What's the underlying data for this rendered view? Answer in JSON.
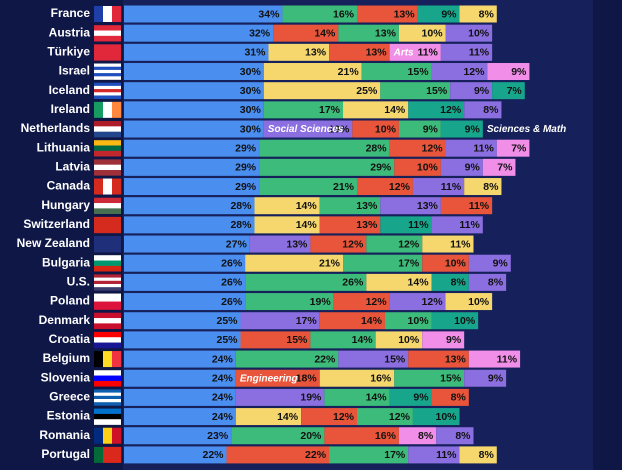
{
  "chart_data": {
    "type": "bar",
    "orientation": "horizontal",
    "stacked": true,
    "categories": [
      "France",
      "Austria",
      "Türkiye",
      "Israel",
      "Iceland",
      "Ireland",
      "Netherlands",
      "Lithuania",
      "Latvia",
      "Canada",
      "Hungary",
      "Switzerland",
      "New Zealand",
      "Bulgaria",
      "U.S.",
      "Poland",
      "Denmark",
      "Croatia",
      "Belgium",
      "Slovenia",
      "Greece",
      "Estonia",
      "Romania",
      "Portugal"
    ],
    "xlim": [
      0,
      100
    ],
    "rows": [
      [
        {
          "value": 34,
          "value_label": "34%",
          "color": "#4a8ef0"
        },
        {
          "value": 16,
          "value_label": "16%",
          "color": "#3dbb7a"
        },
        {
          "value": 13,
          "value_label": "13%",
          "color": "#e8553a"
        },
        {
          "value": 9,
          "value_label": "9%",
          "color": "#17a68c"
        },
        {
          "value": 8,
          "value_label": "8%",
          "color": "#f5d76e"
        }
      ],
      [
        {
          "value": 32,
          "value_label": "32%",
          "color": "#4a8ef0"
        },
        {
          "value": 14,
          "value_label": "14%",
          "color": "#e8553a"
        },
        {
          "value": 13,
          "value_label": "13%",
          "color": "#3dbb7a"
        },
        {
          "value": 10,
          "value_label": "10%",
          "color": "#f5d76e"
        },
        {
          "value": 10,
          "value_label": "10%",
          "color": "#8b6fe0"
        }
      ],
      [
        {
          "value": 31,
          "value_label": "31%",
          "color": "#4a8ef0"
        },
        {
          "value": 13,
          "value_label": "13%",
          "color": "#f5d76e"
        },
        {
          "value": 13,
          "value_label": "13%",
          "color": "#e8553a"
        },
        {
          "value": 11,
          "value_label": "11%",
          "color": "#f08ee8",
          "label": "Arts"
        },
        {
          "value": 11,
          "value_label": "11%",
          "color": "#8b6fe0"
        }
      ],
      [
        {
          "value": 30,
          "value_label": "30%",
          "color": "#4a8ef0"
        },
        {
          "value": 21,
          "value_label": "21%",
          "color": "#f5d76e"
        },
        {
          "value": 15,
          "value_label": "15%",
          "color": "#3dbb7a"
        },
        {
          "value": 12,
          "value_label": "12%",
          "color": "#8b6fe0"
        },
        {
          "value": 9,
          "value_label": "9%",
          "color": "#f08ee8"
        }
      ],
      [
        {
          "value": 30,
          "value_label": "30%",
          "color": "#4a8ef0"
        },
        {
          "value": 25,
          "value_label": "25%",
          "color": "#f5d76e"
        },
        {
          "value": 15,
          "value_label": "15%",
          "color": "#3dbb7a"
        },
        {
          "value": 9,
          "value_label": "9%",
          "color": "#8b6fe0"
        },
        {
          "value": 7,
          "value_label": "7%",
          "color": "#17a68c"
        }
      ],
      [
        {
          "value": 30,
          "value_label": "30%",
          "color": "#4a8ef0"
        },
        {
          "value": 17,
          "value_label": "17%",
          "color": "#3dbb7a"
        },
        {
          "value": 14,
          "value_label": "14%",
          "color": "#f5d76e"
        },
        {
          "value": 12,
          "value_label": "12%",
          "color": "#17a68c"
        },
        {
          "value": 8,
          "value_label": "8%",
          "color": "#8b6fe0"
        }
      ],
      [
        {
          "value": 30,
          "value_label": "30%",
          "color": "#4a8ef0"
        },
        {
          "value": 19,
          "value_label": "19%",
          "color": "#8b6fe0",
          "label": "Social Sciences"
        },
        {
          "value": 10,
          "value_label": "10%",
          "color": "#e8553a"
        },
        {
          "value": 9,
          "value_label": "9%",
          "color": "#3dbb7a"
        },
        {
          "value": 9,
          "value_label": "9%",
          "color": "#17a68c",
          "label": "Sciences & Math"
        }
      ],
      [
        {
          "value": 29,
          "value_label": "29%",
          "color": "#4a8ef0"
        },
        {
          "value": 28,
          "value_label": "28%",
          "color": "#3dbb7a"
        },
        {
          "value": 12,
          "value_label": "12%",
          "color": "#e8553a"
        },
        {
          "value": 11,
          "value_label": "11%",
          "color": "#8b6fe0"
        },
        {
          "value": 7,
          "value_label": "7%",
          "color": "#f08ee8"
        }
      ],
      [
        {
          "value": 29,
          "value_label": "29%",
          "color": "#4a8ef0"
        },
        {
          "value": 29,
          "value_label": "29%",
          "color": "#3dbb7a"
        },
        {
          "value": 10,
          "value_label": "10%",
          "color": "#e8553a"
        },
        {
          "value": 9,
          "value_label": "9%",
          "color": "#8b6fe0"
        },
        {
          "value": 7,
          "value_label": "7%",
          "color": "#f08ee8"
        }
      ],
      [
        {
          "value": 29,
          "value_label": "29%",
          "color": "#4a8ef0"
        },
        {
          "value": 21,
          "value_label": "21%",
          "color": "#3dbb7a"
        },
        {
          "value": 12,
          "value_label": "12%",
          "color": "#e8553a"
        },
        {
          "value": 11,
          "value_label": "11%",
          "color": "#8b6fe0"
        },
        {
          "value": 8,
          "value_label": "8%",
          "color": "#f5d76e"
        }
      ],
      [
        {
          "value": 28,
          "value_label": "28%",
          "color": "#4a8ef0"
        },
        {
          "value": 14,
          "value_label": "14%",
          "color": "#f5d76e"
        },
        {
          "value": 13,
          "value_label": "13%",
          "color": "#3dbb7a"
        },
        {
          "value": 13,
          "value_label": "13%",
          "color": "#8b6fe0"
        },
        {
          "value": 11,
          "value_label": "11%",
          "color": "#e8553a"
        }
      ],
      [
        {
          "value": 28,
          "value_label": "28%",
          "color": "#4a8ef0"
        },
        {
          "value": 14,
          "value_label": "14%",
          "color": "#f5d76e"
        },
        {
          "value": 13,
          "value_label": "13%",
          "color": "#e8553a"
        },
        {
          "value": 11,
          "value_label": "11%",
          "color": "#17a68c"
        },
        {
          "value": 11,
          "value_label": "11%",
          "color": "#8b6fe0"
        }
      ],
      [
        {
          "value": 27,
          "value_label": "27%",
          "color": "#4a8ef0"
        },
        {
          "value": 13,
          "value_label": "13%",
          "color": "#8b6fe0"
        },
        {
          "value": 12,
          "value_label": "12%",
          "color": "#e8553a"
        },
        {
          "value": 12,
          "value_label": "12%",
          "color": "#3dbb7a"
        },
        {
          "value": 11,
          "value_label": "11%",
          "color": "#f5d76e"
        }
      ],
      [
        {
          "value": 26,
          "value_label": "26%",
          "color": "#4a8ef0"
        },
        {
          "value": 21,
          "value_label": "21%",
          "color": "#f5d76e"
        },
        {
          "value": 17,
          "value_label": "17%",
          "color": "#3dbb7a"
        },
        {
          "value": 10,
          "value_label": "10%",
          "color": "#e8553a"
        },
        {
          "value": 9,
          "value_label": "9%",
          "color": "#8b6fe0"
        }
      ],
      [
        {
          "value": 26,
          "value_label": "26%",
          "color": "#4a8ef0"
        },
        {
          "value": 26,
          "value_label": "26%",
          "color": "#3dbb7a"
        },
        {
          "value": 14,
          "value_label": "14%",
          "color": "#f5d76e"
        },
        {
          "value": 8,
          "value_label": "8%",
          "color": "#17a68c"
        },
        {
          "value": 8,
          "value_label": "8%",
          "color": "#8b6fe0"
        }
      ],
      [
        {
          "value": 26,
          "value_label": "26%",
          "color": "#4a8ef0"
        },
        {
          "value": 19,
          "value_label": "19%",
          "color": "#3dbb7a"
        },
        {
          "value": 12,
          "value_label": "12%",
          "color": "#e8553a"
        },
        {
          "value": 12,
          "value_label": "12%",
          "color": "#8b6fe0"
        },
        {
          "value": 10,
          "value_label": "10%",
          "color": "#f5d76e"
        }
      ],
      [
        {
          "value": 25,
          "value_label": "25%",
          "color": "#4a8ef0"
        },
        {
          "value": 17,
          "value_label": "17%",
          "color": "#8b6fe0"
        },
        {
          "value": 14,
          "value_label": "14%",
          "color": "#e8553a"
        },
        {
          "value": 10,
          "value_label": "10%",
          "color": "#3dbb7a"
        },
        {
          "value": 10,
          "value_label": "10%",
          "color": "#17a68c"
        }
      ],
      [
        {
          "value": 25,
          "value_label": "25%",
          "color": "#4a8ef0"
        },
        {
          "value": 15,
          "value_label": "15%",
          "color": "#e8553a"
        },
        {
          "value": 14,
          "value_label": "14%",
          "color": "#3dbb7a"
        },
        {
          "value": 10,
          "value_label": "10%",
          "color": "#f5d76e"
        },
        {
          "value": 9,
          "value_label": "9%",
          "color": "#f08ee8"
        }
      ],
      [
        {
          "value": 24,
          "value_label": "24%",
          "color": "#4a8ef0"
        },
        {
          "value": 22,
          "value_label": "22%",
          "color": "#3dbb7a"
        },
        {
          "value": 15,
          "value_label": "15%",
          "color": "#8b6fe0"
        },
        {
          "value": 13,
          "value_label": "13%",
          "color": "#e8553a"
        },
        {
          "value": 11,
          "value_label": "11%",
          "color": "#f08ee8"
        }
      ],
      [
        {
          "value": 24,
          "value_label": "24%",
          "color": "#4a8ef0"
        },
        {
          "value": 18,
          "value_label": "18%",
          "color": "#e8553a",
          "label": "Engineering"
        },
        {
          "value": 16,
          "value_label": "16%",
          "color": "#f5d76e"
        },
        {
          "value": 15,
          "value_label": "15%",
          "color": "#3dbb7a"
        },
        {
          "value": 9,
          "value_label": "9%",
          "color": "#8b6fe0"
        }
      ],
      [
        {
          "value": 24,
          "value_label": "24%",
          "color": "#4a8ef0"
        },
        {
          "value": 19,
          "value_label": "19%",
          "color": "#8b6fe0"
        },
        {
          "value": 14,
          "value_label": "14%",
          "color": "#3dbb7a"
        },
        {
          "value": 9,
          "value_label": "9%",
          "color": "#17a68c"
        },
        {
          "value": 8,
          "value_label": "8%",
          "color": "#e8553a"
        }
      ],
      [
        {
          "value": 24,
          "value_label": "24%",
          "color": "#4a8ef0"
        },
        {
          "value": 14,
          "value_label": "14%",
          "color": "#f5d76e"
        },
        {
          "value": 12,
          "value_label": "12%",
          "color": "#e8553a"
        },
        {
          "value": 12,
          "value_label": "12%",
          "color": "#3dbb7a"
        },
        {
          "value": 10,
          "value_label": "10%",
          "color": "#17a68c"
        }
      ],
      [
        {
          "value": 23,
          "value_label": "23%",
          "color": "#4a8ef0"
        },
        {
          "value": 20,
          "value_label": "20%",
          "color": "#3dbb7a"
        },
        {
          "value": 16,
          "value_label": "16%",
          "color": "#e8553a"
        },
        {
          "value": 8,
          "value_label": "8%",
          "color": "#f08ee8"
        },
        {
          "value": 8,
          "value_label": "8%",
          "color": "#8b6fe0"
        }
      ],
      [
        {
          "value": 22,
          "value_label": "22%",
          "color": "#4a8ef0"
        },
        {
          "value": 22,
          "value_label": "22%",
          "color": "#e8553a"
        },
        {
          "value": 17,
          "value_label": "17%",
          "color": "#3dbb7a"
        },
        {
          "value": 11,
          "value_label": "11%",
          "color": "#8b6fe0"
        },
        {
          "value": 8,
          "value_label": "8%",
          "color": "#f5d76e"
        }
      ]
    ]
  }
}
